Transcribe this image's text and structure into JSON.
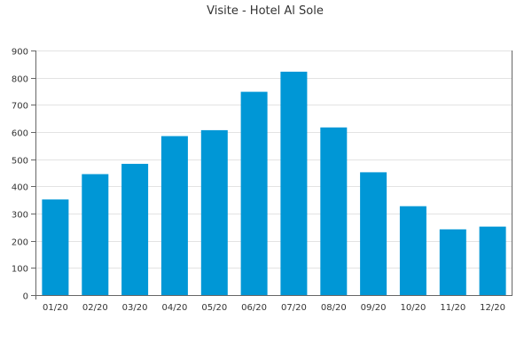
{
  "chart_data": {
    "type": "bar",
    "title": "Visite - Hotel Al Sole",
    "xlabel": "",
    "ylabel": "",
    "categories": [
      "01/20",
      "02/20",
      "03/20",
      "04/20",
      "05/20",
      "06/20",
      "07/20",
      "08/20",
      "09/20",
      "10/20",
      "11/20",
      "12/20"
    ],
    "values": [
      352,
      445,
      483,
      585,
      607,
      748,
      822,
      617,
      452,
      327,
      242,
      252
    ],
    "ylim": [
      0,
      900
    ],
    "yticks": [
      0,
      100,
      200,
      300,
      400,
      500,
      600,
      700,
      800,
      900
    ],
    "grid": true,
    "legend": "none",
    "colors": {
      "bar": "#0097d6",
      "axis": "#666666",
      "grid": "#e3e3e3",
      "text": "#333333"
    }
  }
}
